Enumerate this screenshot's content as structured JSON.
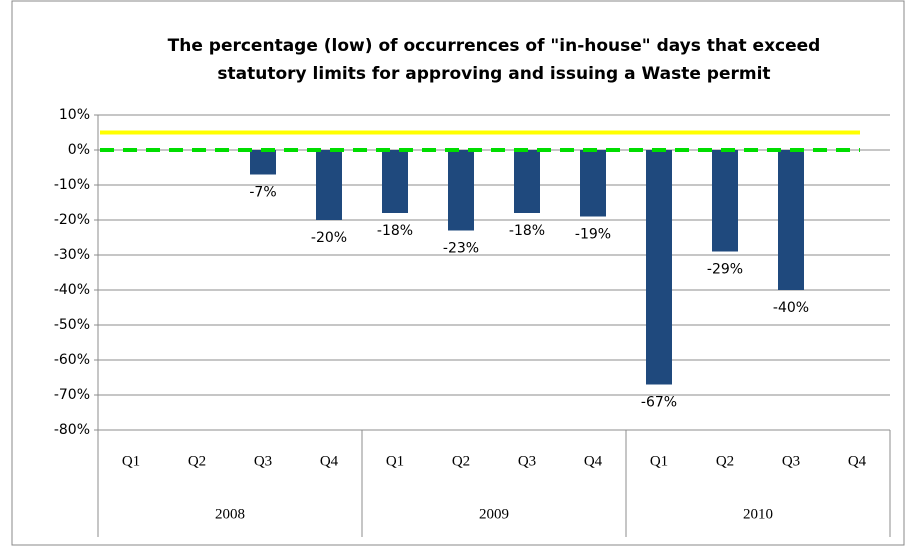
{
  "chart_data": {
    "type": "bar",
    "title": [
      "The percentage (low) of occurrences of \"in-house\" days that exceed",
      "statutory limits for approving and issuing a Waste permit"
    ],
    "categories": [
      "Q1",
      "Q2",
      "Q3",
      "Q4",
      "Q1",
      "Q2",
      "Q3",
      "Q4",
      "Q1",
      "Q2",
      "Q3",
      "Q4"
    ],
    "groups": [
      "2008",
      "2009",
      "2010"
    ],
    "values": [
      null,
      null,
      -7,
      -20,
      -18,
      -23,
      -18,
      -19,
      -67,
      -29,
      -40,
      null
    ],
    "value_labels": [
      null,
      null,
      "-7%",
      "-20%",
      "-18%",
      "-23%",
      "-18%",
      "-19%",
      "-67%",
      "-29%",
      "-40%",
      null
    ],
    "color": "#1f497d",
    "reference_lines": [
      {
        "value": 5,
        "color": "#ffff00",
        "dashed": false
      },
      {
        "value": 0,
        "color": "#00dd00",
        "dashed": true
      }
    ],
    "ylim": [
      -80,
      10
    ],
    "yticks": [
      {
        "value": 10,
        "label": "10%"
      },
      {
        "value": 0,
        "label": "0%"
      },
      {
        "value": -10,
        "label": "-10%"
      },
      {
        "value": -20,
        "label": "-20%"
      },
      {
        "value": -30,
        "label": "-30%"
      },
      {
        "value": -40,
        "label": "-40%"
      },
      {
        "value": -50,
        "label": "-50%"
      },
      {
        "value": -60,
        "label": "-60%"
      },
      {
        "value": -70,
        "label": "-70%"
      },
      {
        "value": -80,
        "label": "-80%"
      }
    ],
    "grid": true
  }
}
